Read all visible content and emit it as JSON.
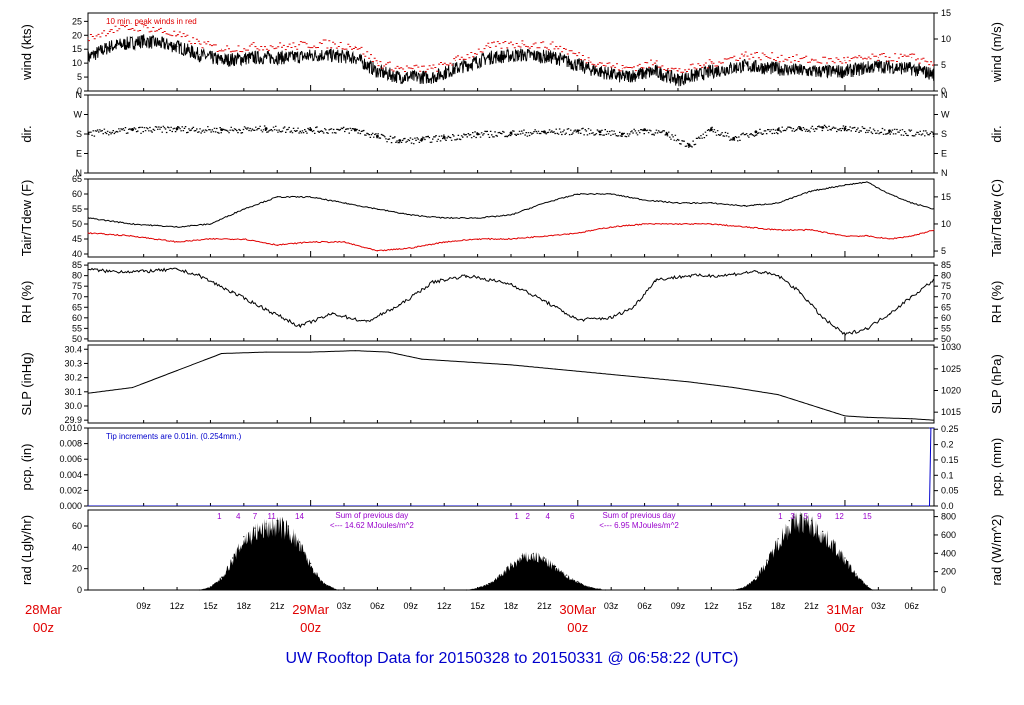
{
  "footer_title": "UW Rooftop Data for 20150328  to  20150331 @ 06:58:22  (UTC)",
  "colors": {
    "black": "#000000",
    "red": "#e00000",
    "blue": "#0000cc",
    "purple": "#9900cc"
  },
  "time_axis": {
    "hours_span": [
      4,
      80
    ],
    "hour_ticks": [
      {
        "h": 9,
        "label": "09z"
      },
      {
        "h": 12,
        "label": "12z"
      },
      {
        "h": 15,
        "label": "15z"
      },
      {
        "h": 18,
        "label": "18z"
      },
      {
        "h": 21,
        "label": "21z"
      },
      {
        "h": 27,
        "label": "03z"
      },
      {
        "h": 30,
        "label": "06z"
      },
      {
        "h": 33,
        "label": "09z"
      },
      {
        "h": 36,
        "label": "12z"
      },
      {
        "h": 39,
        "label": "15z"
      },
      {
        "h": 42,
        "label": "18z"
      },
      {
        "h": 45,
        "label": "21z"
      },
      {
        "h": 51,
        "label": "03z"
      },
      {
        "h": 54,
        "label": "06z"
      },
      {
        "h": 57,
        "label": "09z"
      },
      {
        "h": 60,
        "label": "12z"
      },
      {
        "h": 63,
        "label": "15z"
      },
      {
        "h": 66,
        "label": "18z"
      },
      {
        "h": 69,
        "label": "21z"
      },
      {
        "h": 75,
        "label": "03z"
      },
      {
        "h": 78,
        "label": "06z"
      }
    ],
    "day_ticks": [
      {
        "h": 0,
        "date": "28Mar",
        "time": "00z"
      },
      {
        "h": 24,
        "date": "29Mar",
        "time": "00z"
      },
      {
        "h": 48,
        "date": "30Mar",
        "time": "00z"
      },
      {
        "h": 72,
        "date": "31Mar",
        "time": "00z"
      }
    ]
  },
  "chart_data": [
    {
      "type": "line",
      "id": "wind",
      "ylabel": "wind (kts)",
      "ylabel_right": "wind (m/s)",
      "ylim": [
        0,
        28
      ],
      "yticks": [
        0,
        5,
        10,
        15,
        20,
        25
      ],
      "ylim_right": [
        0,
        15
      ],
      "yticks_right": [
        0,
        5,
        10,
        15
      ],
      "annotation": "10 min. peak winds in red",
      "series": [
        {
          "name": "wind speed (kts)",
          "color": "#000000",
          "x": [
            4,
            6,
            9,
            12,
            14,
            16,
            19,
            22,
            25,
            28,
            30,
            32,
            35,
            37,
            40,
            43,
            46,
            49,
            52,
            55,
            57,
            60,
            63,
            66,
            69,
            72,
            75,
            78,
            80
          ],
          "y": [
            12,
            16,
            18,
            16,
            13,
            11,
            12,
            12,
            13,
            12,
            7,
            5,
            5,
            8,
            12,
            13,
            12,
            8,
            5,
            7,
            4,
            7,
            9,
            8,
            7,
            7,
            9,
            8,
            6
          ]
        },
        {
          "name": "10 min peak wind (kts)",
          "color": "#e00000",
          "x": [
            4,
            6,
            9,
            12,
            14,
            16,
            19,
            22,
            25,
            28,
            30,
            32,
            35,
            37,
            40,
            43,
            46,
            49,
            52,
            55,
            57,
            60,
            63,
            66,
            69,
            72,
            75,
            78,
            80
          ],
          "y": [
            19,
            22,
            23,
            20,
            17,
            15,
            16,
            16,
            17,
            16,
            10,
            8,
            8,
            11,
            16,
            17,
            16,
            11,
            8,
            10,
            7,
            10,
            13,
            12,
            11,
            11,
            12,
            12,
            10
          ]
        }
      ]
    },
    {
      "type": "scatter",
      "id": "dir",
      "ylabel": "dir.",
      "ylabel_right": "dir.",
      "ylim": [
        0,
        360
      ],
      "yticks_labels": [
        {
          "v": 0,
          "label": "N"
        },
        {
          "v": 90,
          "label": "E"
        },
        {
          "v": 180,
          "label": "S"
        },
        {
          "v": 270,
          "label": "W"
        },
        {
          "v": 360,
          "label": "N"
        }
      ],
      "series": [
        {
          "name": "wind direction (deg)",
          "color": "#000000",
          "x": [
            4,
            8,
            12,
            16,
            20,
            24,
            28,
            30,
            32,
            34,
            36,
            39,
            42,
            45,
            48,
            50,
            52,
            54,
            56,
            58,
            60,
            62,
            64,
            66,
            68,
            70,
            72,
            76,
            80
          ],
          "y": [
            185,
            200,
            205,
            200,
            205,
            200,
            200,
            170,
            150,
            155,
            165,
            180,
            185,
            190,
            195,
            190,
            180,
            200,
            180,
            130,
            200,
            160,
            190,
            200,
            205,
            210,
            205,
            195,
            180
          ]
        }
      ]
    },
    {
      "type": "line",
      "id": "temp",
      "ylabel": "Tair/Tdew (F)",
      "ylabel_right": "Tair/Tdew (C)",
      "ylim": [
        39,
        65
      ],
      "yticks": [
        40,
        45,
        50,
        55,
        60,
        65
      ],
      "ylim_right": [
        3.9,
        18.3
      ],
      "yticks_right": [
        5,
        10,
        15
      ],
      "series": [
        {
          "name": "Tair (F)",
          "color": "#000000",
          "x": [
            4,
            8,
            12,
            15,
            18,
            21,
            24,
            27,
            30,
            33,
            36,
            39,
            42,
            45,
            48,
            51,
            54,
            57,
            60,
            63,
            66,
            69,
            72,
            74,
            76,
            78,
            80
          ],
          "y": [
            52,
            50,
            49,
            50,
            55,
            59,
            59,
            57,
            55,
            53,
            52,
            52,
            53,
            57,
            60,
            60,
            58,
            57,
            57,
            56,
            57,
            61,
            63,
            64,
            60,
            57,
            55
          ]
        },
        {
          "name": "Tdew (F)",
          "color": "#e00000",
          "x": [
            4,
            8,
            12,
            15,
            18,
            21,
            24,
            27,
            30,
            33,
            36,
            39,
            42,
            45,
            48,
            51,
            54,
            57,
            60,
            63,
            66,
            69,
            72,
            74,
            76,
            78,
            80
          ],
          "y": [
            47,
            46,
            44,
            45,
            45,
            43,
            44,
            44,
            41,
            42,
            44,
            45,
            45,
            46,
            47,
            49,
            50,
            50,
            50,
            49,
            48,
            48,
            46,
            46,
            45,
            46,
            48
          ]
        }
      ]
    },
    {
      "type": "line",
      "id": "rh",
      "ylabel": "RH (%)",
      "ylabel_right": "RH (%)",
      "ylim": [
        49,
        86
      ],
      "yticks": [
        50,
        55,
        60,
        65,
        70,
        75,
        80,
        85
      ],
      "yticks_right": [
        50,
        55,
        60,
        65,
        70,
        75,
        80,
        85
      ],
      "series": [
        {
          "name": "RH (%)",
          "color": "#000000",
          "x": [
            4,
            6,
            9,
            12,
            14,
            17,
            20,
            23,
            26,
            29,
            32,
            35,
            38,
            42,
            45,
            48,
            51,
            53,
            55,
            58,
            61,
            64,
            66,
            68,
            70,
            72,
            74,
            76,
            78,
            80
          ],
          "y": [
            83,
            82,
            82,
            83,
            80,
            72,
            64,
            56,
            62,
            58,
            66,
            77,
            80,
            76,
            68,
            59,
            60,
            65,
            78,
            80,
            80,
            82,
            80,
            72,
            60,
            52,
            55,
            62,
            70,
            78
          ]
        }
      ]
    },
    {
      "type": "line",
      "id": "slp",
      "ylabel": "SLP (inHg)",
      "ylabel_right": "SLP (hPa)",
      "ylim": [
        29.88,
        30.43
      ],
      "yticks": [
        29.9,
        30.0,
        30.1,
        30.2,
        30.3,
        30.4
      ],
      "ylim_right": [
        1012.5,
        1030.5
      ],
      "yticks_right": [
        1015,
        1020,
        1025,
        1030
      ],
      "series": [
        {
          "name": "SLP (inHg)",
          "color": "#000000",
          "x": [
            4,
            8,
            12,
            16,
            20,
            24,
            28,
            31,
            34,
            38,
            42,
            46,
            50,
            54,
            58,
            62,
            66,
            70,
            72,
            74,
            78,
            80
          ],
          "y": [
            30.09,
            30.13,
            30.25,
            30.37,
            30.38,
            30.38,
            30.39,
            30.38,
            30.33,
            30.31,
            30.29,
            30.26,
            30.23,
            30.2,
            30.17,
            30.13,
            30.08,
            29.98,
            29.93,
            29.92,
            29.91,
            29.9
          ]
        }
      ]
    },
    {
      "type": "line",
      "id": "pcp",
      "ylabel": "pcp. (in)",
      "ylabel_right": "pcp. (mm)",
      "ylim": [
        0,
        0.01
      ],
      "yticks": [
        0.0,
        0.002,
        0.004,
        0.006,
        0.008,
        0.01
      ],
      "ylim_right": [
        0,
        0.254
      ],
      "yticks_right": [
        0.0,
        0.05,
        0.1,
        0.15,
        0.2,
        0.25
      ],
      "annotation": "Tip increments are 0.01in. (0.254mm.)",
      "series": [
        {
          "name": "precipitation (in)",
          "color": "#0000cc",
          "x": [
            4,
            79.6,
            79.6,
            80
          ],
          "y": [
            0,
            0,
            0.01,
            0.01
          ]
        }
      ]
    },
    {
      "type": "area",
      "id": "rad",
      "ylabel": "rad (Lgly/hr)",
      "ylabel_right": "rad (W/m^2)",
      "ylim": [
        0,
        75
      ],
      "yticks": [
        0,
        20,
        40,
        60
      ],
      "ylim_right": [
        0,
        872
      ],
      "yticks_right": [
        0,
        200,
        400,
        600,
        800
      ],
      "series": [
        {
          "name": "solar radiation (Lgly/hr)",
          "color": "#000000",
          "x": [
            4,
            14,
            15,
            16,
            17,
            18,
            19,
            20,
            21,
            22,
            23,
            24,
            25,
            26,
            26.5,
            38,
            39,
            40,
            41,
            42,
            43,
            44,
            45,
            46,
            47,
            48,
            49,
            50,
            50.5,
            62,
            63,
            64,
            65,
            66,
            67,
            68,
            69,
            70,
            71,
            72,
            73,
            74,
            74.5,
            80
          ],
          "y": [
            0,
            0,
            3,
            12,
            30,
            50,
            58,
            62,
            65,
            60,
            45,
            25,
            8,
            2,
            0,
            0,
            2,
            6,
            14,
            24,
            32,
            34,
            30,
            22,
            14,
            8,
            3,
            1,
            0,
            0,
            3,
            12,
            28,
            48,
            65,
            70,
            65,
            55,
            45,
            30,
            15,
            4,
            0,
            0
          ]
        }
      ],
      "annotations": [
        {
          "x": 15.8,
          "text": "1"
        },
        {
          "x": 17.5,
          "text": "4"
        },
        {
          "x": 19,
          "text": "7"
        },
        {
          "x": 20.5,
          "text": "11"
        },
        {
          "x": 23,
          "text": "14"
        },
        {
          "x": 42.5,
          "text": "1"
        },
        {
          "x": 43.5,
          "text": "2"
        },
        {
          "x": 45.3,
          "text": "4"
        },
        {
          "x": 47.5,
          "text": "6"
        },
        {
          "x": 66.2,
          "text": "1"
        },
        {
          "x": 67.3,
          "text": "3"
        },
        {
          "x": 68.5,
          "text": "5"
        },
        {
          "x": 69.7,
          "text": "9"
        },
        {
          "x": 71.5,
          "text": "12"
        },
        {
          "x": 74,
          "text": "15"
        }
      ],
      "day_sums": [
        {
          "x": 29.5,
          "line1": "Sum of previous day",
          "line2": "<--- 14.62 MJoules/m^2"
        },
        {
          "x": 53.5,
          "line1": "Sum of previous day",
          "line2": "<--- 6.95 MJoules/m^2"
        }
      ]
    }
  ]
}
